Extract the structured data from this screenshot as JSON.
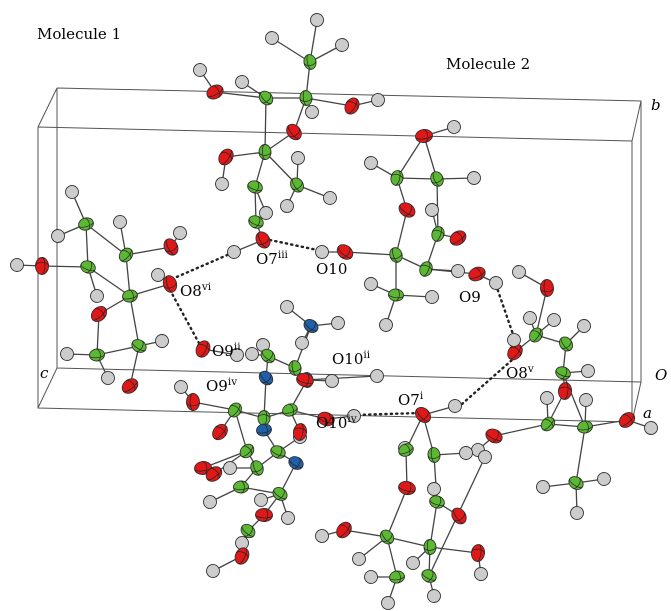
{
  "figure": {
    "molecule1_label": "Molecule 1",
    "molecule2_label": "Molecule 2",
    "axes": {
      "a": "a",
      "b": "b",
      "c": "c",
      "origin": "O"
    },
    "oxygen_labels": [
      {
        "id": "o8vi",
        "base": "O8",
        "sup": "vi"
      },
      {
        "id": "o7iii",
        "base": "O7",
        "sup": "iii"
      },
      {
        "id": "o10",
        "base": "O10",
        "sup": ""
      },
      {
        "id": "o9",
        "base": "O9",
        "sup": ""
      },
      {
        "id": "o9ii",
        "base": "O9",
        "sup": "ii"
      },
      {
        "id": "o10ii",
        "base": "O10",
        "sup": "ii"
      },
      {
        "id": "o9iv",
        "base": "O9",
        "sup": "iv"
      },
      {
        "id": "o7i",
        "base": "O7",
        "sup": "i"
      },
      {
        "id": "o8v",
        "base": "O8",
        "sup": "v"
      },
      {
        "id": "o10iv",
        "base": "O10",
        "sup": "iv"
      }
    ],
    "colors": {
      "oxygen": "#e01818",
      "carbon": "#5cb832",
      "nitrogen": "#2060a8",
      "hydrogen": "#cccccc",
      "bond": "#444444",
      "cell": "#555555"
    }
  }
}
